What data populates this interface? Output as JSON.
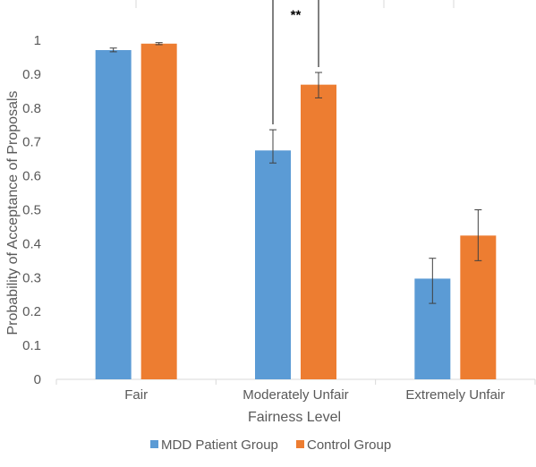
{
  "chart_data": {
    "type": "bar",
    "categories": [
      "Fair",
      "Moderately Unfair",
      "Extremely Unfair"
    ],
    "series": [
      {
        "name": "MDD Patient Group",
        "color": "#5b9bd5",
        "values": [
          0.971,
          0.675,
          0.297
        ],
        "err_low": [
          0.966,
          0.638,
          0.224
        ],
        "err_high": [
          0.977,
          0.736,
          0.357
        ]
      },
      {
        "name": "Control Group",
        "color": "#ed7d31",
        "values": [
          0.99,
          0.869,
          0.424
        ],
        "err_low": [
          0.987,
          0.83,
          0.35
        ],
        "err_high": [
          0.993,
          0.905,
          0.5
        ]
      }
    ],
    "xlabel": "Fairness Level",
    "ylabel": "Probability of Acceptance of Proposals",
    "ylim": [
      0,
      1
    ],
    "yticks": [
      "0",
      "0.1",
      "0.2",
      "0.3",
      "0.4",
      "0.5",
      "0.6",
      "0.7",
      "0.8",
      "0.9",
      "1"
    ],
    "grid": false,
    "legend_position": "bottom",
    "annotation": {
      "text": "**",
      "category": "Moderately Unfair",
      "bracket_top": 1.12
    }
  }
}
